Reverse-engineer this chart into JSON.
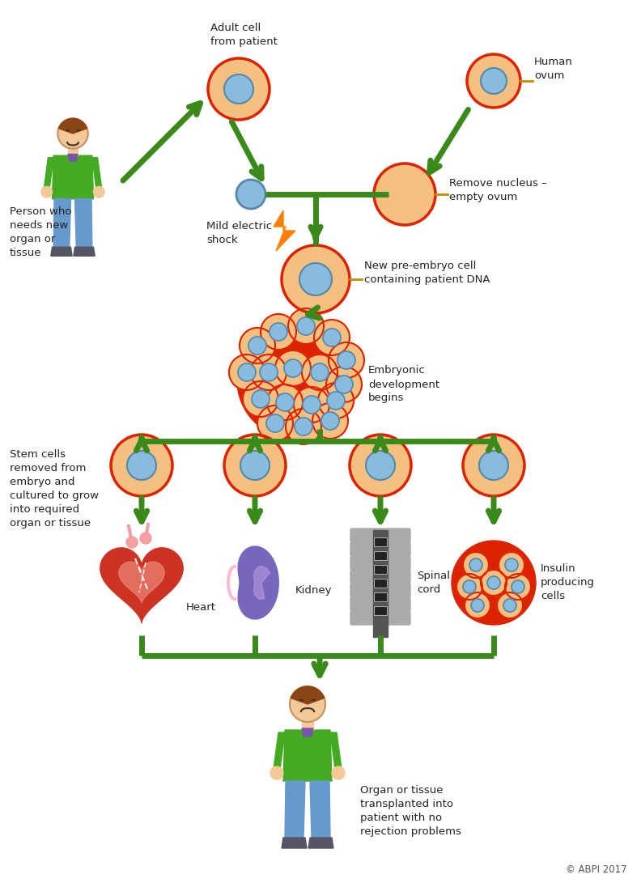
{
  "bg_color": "#ffffff",
  "arrow_color": "#3a8a1a",
  "arrow_lw": 5.0,
  "cell_outer_color": "#f4c080",
  "cell_inner_color": "#88bbdd",
  "cell_border_color": "#dd2200",
  "cell_inner_border": "#5588aa",
  "text_color": "#222222",
  "copyright": "© ABPI 2017",
  "green": "#3a8a1a",
  "person_skin": "#f5c898",
  "person_hair": "#8b4513",
  "person_body": "#44aa22",
  "person_pants": "#6699cc",
  "person_shoes": "#555566",
  "labels": {
    "adult_cell": "Adult cell\nfrom patient",
    "human_ovum": "Human\novum",
    "person_needs": "Person who\nneeds new\norgan or\ntissue",
    "mild_shock": "Mild electric\nshock",
    "remove_nucleus": "Remove nucleus –\nempty ovum",
    "new_pre_embryo": "New pre-embryo cell\ncontaining patient DNA",
    "embryonic_dev": "Embryonic\ndevelopment\nbegins",
    "stem_cells": "Stem cells\nremoved from\nembryo and\ncultured to grow\ninto required\norgan or tissue",
    "heart": "Heart",
    "kidney": "Kidney",
    "spinal_cord": "Spinal\ncord",
    "insulin": "Insulin\nproducing\ncells",
    "transplanted": "Organ or tissue\ntransplanted into\npatient with no\nrejection problems"
  }
}
